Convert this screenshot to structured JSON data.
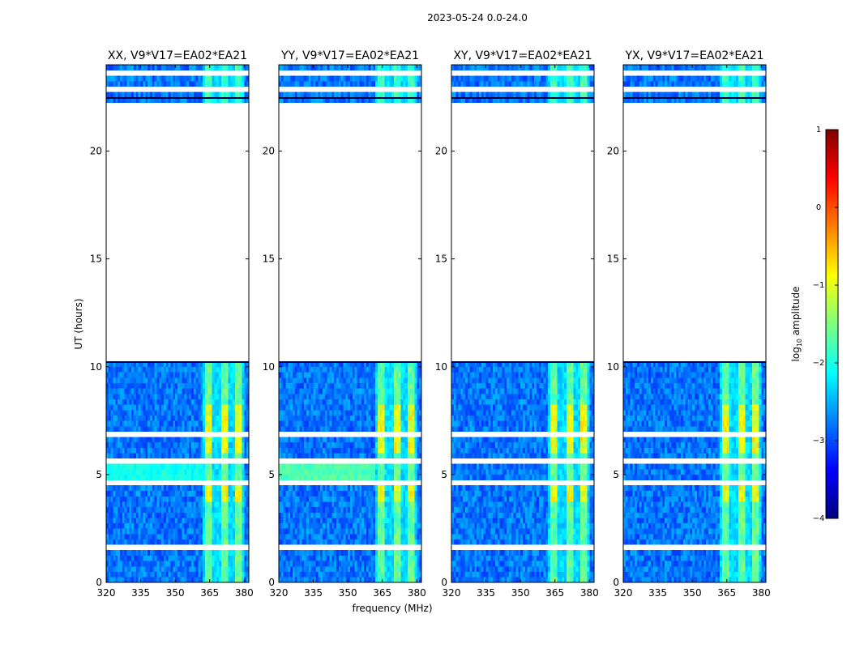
{
  "figure": {
    "suptitle": "2023-05-24 0.0-24.0",
    "ylabel": "UT (hours)",
    "xlabel": "frequency (MHz)"
  },
  "colorbar": {
    "label": "log10 amplitude",
    "label_main": "log",
    "label_sub": "10",
    "label_rest": " amplitude",
    "range": [
      -4,
      1
    ],
    "ticks": [
      1,
      0,
      -1,
      -2,
      -3,
      -4
    ],
    "tick_labels": [
      "1",
      "0",
      "−1",
      "−2",
      "−3",
      "−4"
    ],
    "colormap": "jet",
    "colors": [
      "#00007f",
      "#0000ff",
      "#007fff",
      "#00ffff",
      "#7fff7f",
      "#ffff00",
      "#ff7f00",
      "#ff0000",
      "#7f0000"
    ]
  },
  "chart_data": [
    {
      "type": "heatmap",
      "title": "XX, V9*V17=EA02*EA21",
      "xlim": [
        320,
        382
      ],
      "ylim": [
        0,
        24
      ],
      "xticks": [
        320,
        335,
        350,
        365,
        380
      ],
      "yticks": [
        0,
        5,
        10,
        15,
        20
      ],
      "xtick_labels": [
        "320",
        "335",
        "350",
        "365",
        "380"
      ],
      "ytick_labels": [
        "0",
        "5",
        "10",
        "15",
        "20"
      ],
      "show_ylabel": true,
      "show_xlabel": false
    },
    {
      "type": "heatmap",
      "title": "YY, V9*V17=EA02*EA21",
      "xlim": [
        320,
        382
      ],
      "ylim": [
        0,
        24
      ],
      "xticks": [
        320,
        335,
        350,
        365,
        380
      ],
      "yticks": [
        0,
        5,
        10,
        15,
        20
      ],
      "xtick_labels": [
        "320",
        "335",
        "350",
        "365",
        "380"
      ],
      "ytick_labels": [
        "0",
        "5",
        "10",
        "15",
        "20"
      ],
      "show_ylabel": false,
      "show_xlabel": true
    },
    {
      "type": "heatmap",
      "title": "XY, V9*V17=EA02*EA21",
      "xlim": [
        320,
        382
      ],
      "ylim": [
        0,
        24
      ],
      "xticks": [
        320,
        335,
        350,
        365,
        380
      ],
      "yticks": [
        0,
        5,
        10,
        15,
        20
      ],
      "xtick_labels": [
        "320",
        "335",
        "350",
        "365",
        "380"
      ],
      "ytick_labels": [
        "0",
        "5",
        "10",
        "15",
        "20"
      ],
      "show_ylabel": false,
      "show_xlabel": false
    },
    {
      "type": "heatmap",
      "title": "YX, V9*V17=EA02*EA21",
      "xlim": [
        320,
        382
      ],
      "ylim": [
        0,
        24
      ],
      "xticks": [
        320,
        335,
        350,
        365,
        380
      ],
      "yticks": [
        0,
        5,
        10,
        15,
        20
      ],
      "xtick_labels": [
        "320",
        "335",
        "350",
        "365",
        "380"
      ],
      "ytick_labels": [
        "0",
        "5",
        "10",
        "15",
        "20"
      ],
      "show_ylabel": false,
      "show_xlabel": false
    }
  ]
}
